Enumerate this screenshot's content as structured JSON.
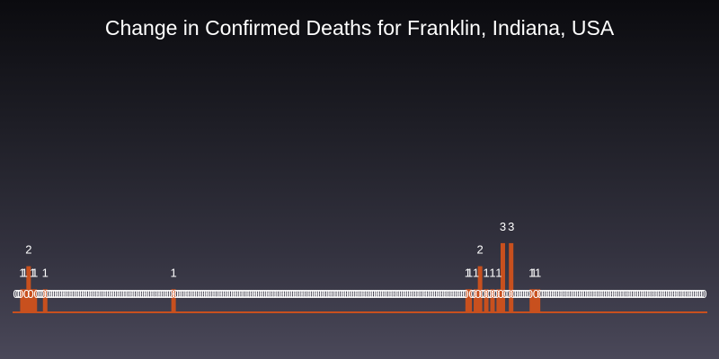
{
  "chart_data": {
    "type": "bar",
    "title": "Change in Confirmed Deaths for Franklin, Indiana, USA",
    "xlabel": "",
    "ylabel": "",
    "ylim": [
      0,
      3
    ],
    "grid": false,
    "bar_color": "#c8501e",
    "label_color": "#ffffff",
    "values": [
      0,
      0,
      0,
      1,
      1,
      0,
      2,
      0,
      1,
      1,
      0,
      0,
      0,
      0,
      1,
      0,
      0,
      0,
      0,
      0,
      0,
      0,
      0,
      0,
      0,
      0,
      0,
      0,
      0,
      0,
      0,
      0,
      0,
      0,
      0,
      0,
      0,
      0,
      0,
      0,
      0,
      0,
      0,
      0,
      0,
      0,
      0,
      0,
      0,
      0,
      0,
      0,
      0,
      0,
      0,
      0,
      0,
      0,
      0,
      0,
      0,
      0,
      0,
      0,
      0,
      0,
      0,
      0,
      0,
      0,
      0,
      0,
      0,
      0,
      0,
      0,
      1,
      0,
      0,
      0,
      0,
      0,
      0,
      0,
      0,
      0,
      0,
      0,
      0,
      0,
      0,
      0,
      0,
      0,
      0,
      0,
      0,
      0,
      0,
      0,
      0,
      0,
      0,
      0,
      0,
      0,
      0,
      0,
      0,
      0,
      0,
      0,
      0,
      0,
      0,
      0,
      0,
      0,
      0,
      0,
      0,
      0,
      0,
      0,
      0,
      0,
      0,
      0,
      0,
      0,
      0,
      0,
      0,
      0,
      0,
      0,
      0,
      0,
      0,
      0,
      0,
      0,
      0,
      0,
      0,
      0,
      0,
      0,
      0,
      0,
      0,
      0,
      0,
      0,
      0,
      0,
      0,
      0,
      0,
      0,
      0,
      0,
      0,
      0,
      0,
      0,
      0,
      0,
      0,
      0,
      0,
      0,
      0,
      0,
      0,
      0,
      0,
      0,
      0,
      0,
      0,
      0,
      0,
      0,
      0,
      0,
      0,
      0,
      0,
      0,
      0,
      0,
      0,
      0,
      0,
      0,
      0,
      0,
      0,
      0,
      0,
      0,
      0,
      0,
      0,
      0,
      0,
      0,
      0,
      0,
      0,
      0,
      0,
      0,
      0,
      0,
      0,
      0,
      1,
      1,
      0,
      0,
      1,
      0,
      2,
      0,
      0,
      1,
      0,
      0,
      1,
      0,
      0,
      1,
      0,
      3,
      0,
      0,
      0,
      3,
      0,
      0,
      0,
      0,
      0,
      0,
      0,
      0,
      0,
      1,
      1,
      0,
      1,
      0,
      0,
      0,
      0,
      0,
      0,
      0,
      0,
      0,
      0,
      0,
      0,
      0,
      0,
      0,
      0,
      0,
      0,
      0,
      0,
      0,
      0,
      0,
      0,
      0,
      0,
      0,
      0,
      0,
      0,
      0,
      0,
      0,
      0,
      0,
      0,
      0,
      0,
      0,
      0,
      0,
      0,
      0,
      0,
      0,
      0,
      0,
      0,
      0,
      0,
      0,
      0,
      0,
      0,
      0,
      0,
      0,
      0,
      0,
      0,
      0,
      0,
      0,
      0,
      0,
      0,
      0,
      0,
      0,
      0,
      0,
      0,
      0,
      0,
      0,
      0,
      0,
      0,
      0,
      0
    ]
  }
}
